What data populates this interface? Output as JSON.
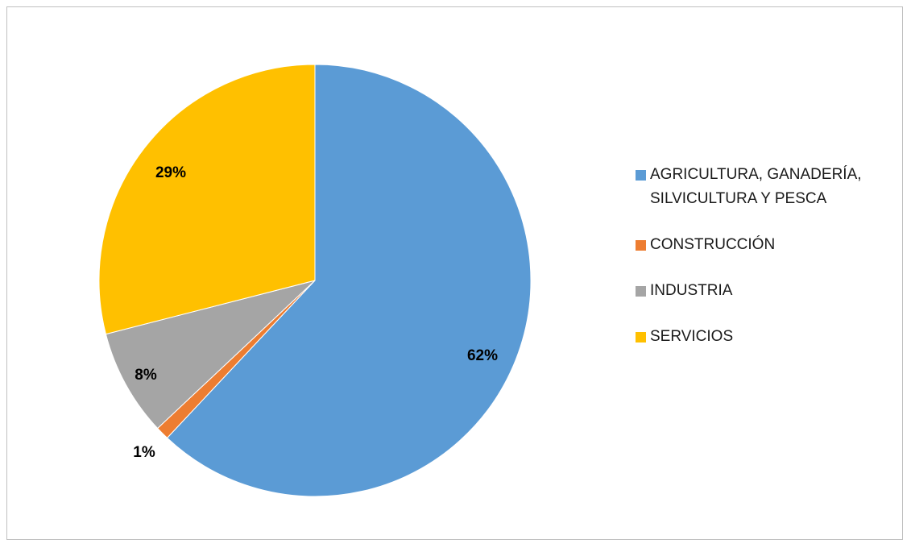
{
  "chart_data": {
    "type": "pie",
    "title": "",
    "start_angle_deg": 0,
    "direction": "clockwise",
    "legend_position": "right",
    "slices": [
      {
        "label": "AGRICULTURA, GANADERÍA, SILVICULTURA Y PESCA",
        "value": 62,
        "data_label": "62%",
        "color": "#5b9bd5"
      },
      {
        "label": "CONSTRUCCIÓN",
        "value": 1,
        "data_label": "1%",
        "color": "#ed7d31"
      },
      {
        "label": "INDUSTRIA",
        "value": 8,
        "data_label": "8%",
        "color": "#a5a5a5"
      },
      {
        "label": "SERVICIOS",
        "value": 29,
        "data_label": "29%",
        "color": "#ffc000"
      }
    ]
  }
}
